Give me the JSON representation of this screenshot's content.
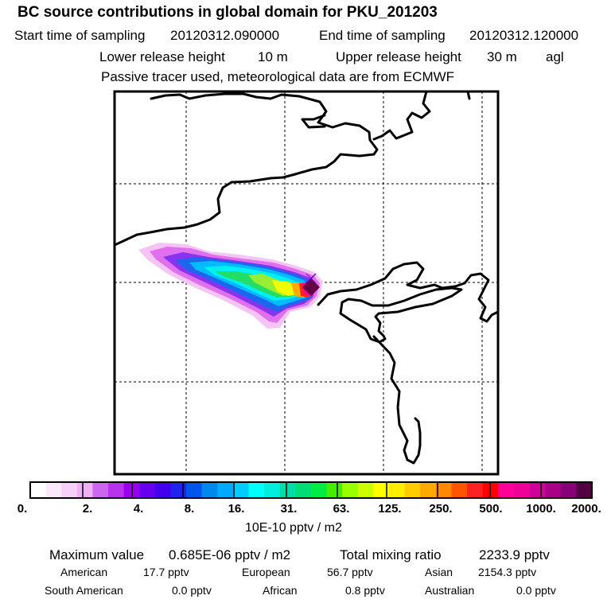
{
  "title": "BC  source contributions in global domain for PKU_201203",
  "header": {
    "start_label": "Start time of sampling",
    "start_value": "20120312.090000",
    "end_label": "End time of sampling",
    "end_value": "20120312.120000",
    "lower_label": "Lower release height",
    "lower_value": "10 m",
    "upper_label": "Upper release height",
    "upper_value": "30 m",
    "upper_suffix": "agl",
    "note": "Passive tracer used, meteorological data are from ECMWF"
  },
  "colorbar": {
    "tick_labels": [
      "0.",
      "2.",
      "4.",
      "8.",
      "16.",
      "31.",
      "63.",
      "125.",
      "250.",
      "500.",
      "1000.",
      "2000."
    ],
    "unit_label": "10E-10 pptv / m2",
    "colors": [
      "#ffffff",
      "#fbe8fb",
      "#f7d0f7",
      "#f0b0f5",
      "#cc66ee",
      "#b833ee",
      "#9900ee",
      "#6600ee",
      "#4400ee",
      "#2222ee",
      "#0055ee",
      "#0088ee",
      "#00aaff",
      "#00ccff",
      "#00ffff",
      "#00eedd",
      "#00ddaa",
      "#00dd77",
      "#00ee44",
      "#44ee00",
      "#99ff00",
      "#ccff00",
      "#ffff00",
      "#ffee00",
      "#ffcc00",
      "#ffaa00",
      "#ff8800",
      "#ff5500",
      "#ff2222",
      "#ff0000",
      "#ff0099",
      "#ee0099",
      "#cc0099",
      "#aa0088",
      "#880077",
      "#550044"
    ]
  },
  "stats": {
    "max_label": "Maximum value",
    "max_value": "0.685E-06 pptv / m2",
    "total_label": "Total mixing ratio",
    "total_value": "2233.9 pptv",
    "regions": [
      {
        "name": "American",
        "value": "17.7 pptv"
      },
      {
        "name": "European",
        "value": "56.7 pptv"
      },
      {
        "name": "Asian",
        "value": "2154.3 pptv"
      },
      {
        "name": "South American",
        "value": "0.0 pptv"
      },
      {
        "name": "African",
        "value": "0.8 pptv"
      },
      {
        "name": "Australian",
        "value": "0.0 pptv"
      }
    ]
  }
}
